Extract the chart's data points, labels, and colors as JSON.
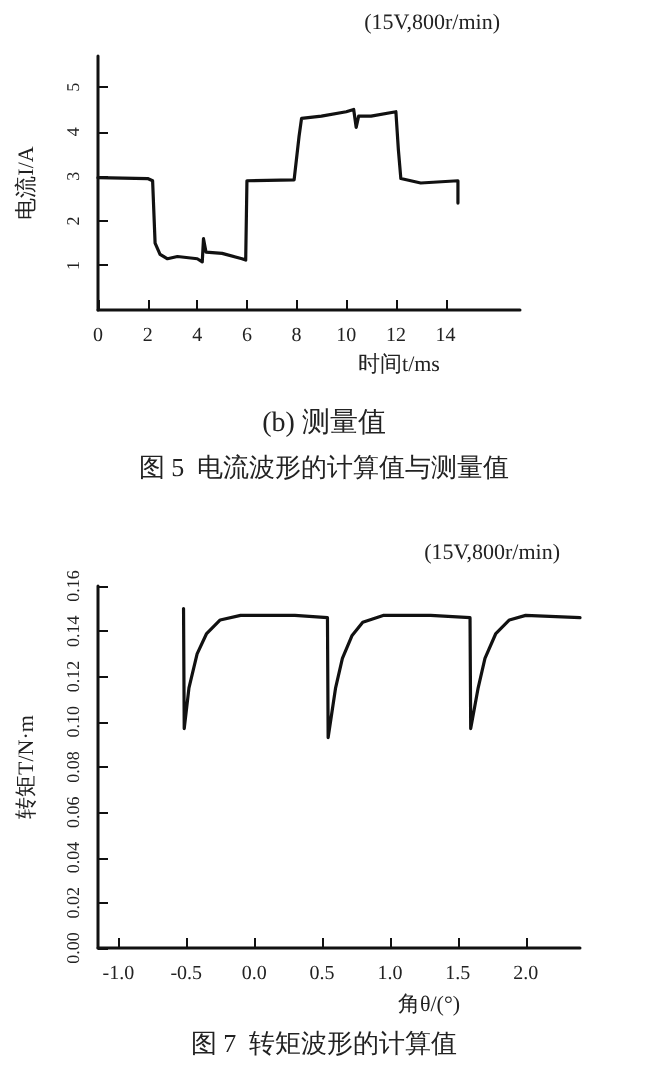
{
  "chart_data": [
    {
      "type": "line",
      "xlabel": "时间t/ms",
      "ylabel": "电流I/A",
      "annotations": [
        "(15V,800r/min)",
        "(b) 测量值",
        "图 5  电流波形的计算值与测量值"
      ],
      "xlim": [
        0,
        17
      ],
      "xticks": [
        0,
        2,
        4,
        6,
        8,
        10,
        12,
        14
      ],
      "ylim": [
        0,
        5.7
      ],
      "yticks": [
        1,
        2,
        3,
        4,
        5
      ],
      "grid": false,
      "marker": "none",
      "line_style": "solid",
      "series": [
        {
          "color": "#111111",
          "x": [
            0,
            2,
            2.2,
            2.3,
            2.5,
            2.8,
            3.2,
            4,
            4.2,
            4.25,
            4.3,
            4.35,
            5,
            5.8,
            5.95,
            6,
            7.9,
            8.1,
            8.2,
            9,
            10,
            10.3,
            10.4,
            10.5,
            11,
            12,
            12.1,
            12.2,
            13,
            14.5,
            14.5
          ],
          "values": [
            2.97,
            2.95,
            2.9,
            1.5,
            1.25,
            1.15,
            1.2,
            1.15,
            1.08,
            1.6,
            1.6,
            1.3,
            1.27,
            1.15,
            1.12,
            2.9,
            2.92,
            3.9,
            4.3,
            4.35,
            4.45,
            4.5,
            4.1,
            4.35,
            4.35,
            4.45,
            3.6,
            2.95,
            2.85,
            2.9,
            2.4
          ]
        }
      ]
    },
    {
      "type": "line",
      "xlabel": "角θ/(°)",
      "ylabel": "转矩T/N·m",
      "annotations": [
        "(15V,800r/min)",
        "图 7  转矩波形的计算值"
      ],
      "xlim": [
        -1.15,
        2.4
      ],
      "xticks": [
        {
          "value": -1,
          "label": "-1.0"
        },
        -0.5,
        {
          "value": 0,
          "label": "0.0"
        },
        0.5,
        {
          "value": 1,
          "label": "1.0"
        },
        1.5,
        {
          "value": 2,
          "label": "2.0"
        }
      ],
      "ylim": [
        0,
        0.16
      ],
      "yticks": [
        {
          "value": 0,
          "label": "0.00"
        },
        0.02,
        0.04,
        0.06,
        0.08,
        {
          "value": 0.1,
          "label": "0.10"
        },
        0.12,
        0.14,
        0.16
      ],
      "grid": false,
      "marker": "none",
      "line_style": "solid",
      "series": [
        {
          "color": "#111111",
          "x": [
            -0.52,
            -0.515,
            -0.48,
            -0.42,
            -0.35,
            -0.25,
            -0.1,
            0.3,
            0.54,
            0.545,
            0.6,
            0.65,
            0.72,
            0.8,
            0.95,
            1.3,
            1.59,
            1.595,
            1.65,
            1.7,
            1.78,
            1.88,
            2.0,
            2.4
          ],
          "values": [
            0.15,
            0.097,
            0.115,
            0.13,
            0.139,
            0.145,
            0.147,
            0.147,
            0.146,
            0.093,
            0.115,
            0.128,
            0.138,
            0.144,
            0.147,
            0.147,
            0.146,
            0.097,
            0.115,
            0.128,
            0.139,
            0.145,
            0.147,
            0.146
          ]
        }
      ]
    }
  ]
}
